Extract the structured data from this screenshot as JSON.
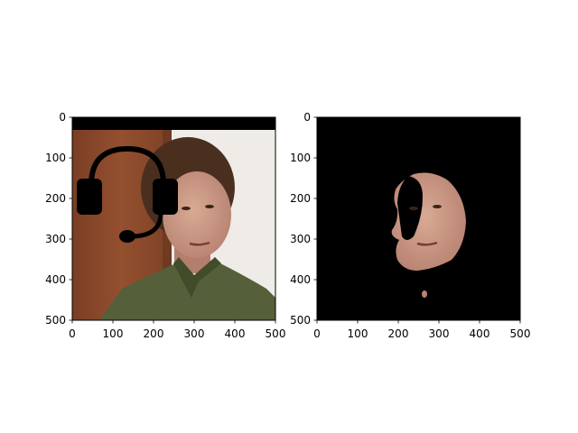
{
  "chart_data": [
    {
      "type": "image",
      "content": "photo of a woman in a green jacket with a black headset drawn over her head and a black bar at the top",
      "xlim": [
        0,
        500
      ],
      "ylim": [
        500,
        0
      ],
      "xticks": [
        0,
        100,
        200,
        300,
        400,
        500
      ],
      "yticks": [
        0,
        100,
        200,
        300,
        400,
        500
      ],
      "xticklabels": [
        "0",
        "100",
        "200",
        "300",
        "400",
        "500"
      ],
      "yticklabels": [
        "0",
        "100",
        "200",
        "300",
        "400",
        "500"
      ],
      "colors": {
        "background_wall": "#f0eeea",
        "wood_panel": "#8a4a2e",
        "jacket": "#4f5a32",
        "hair": "#4a2f1f",
        "skin": "#c99a86",
        "overlay": "#000000"
      }
    },
    {
      "type": "image",
      "content": "segmentation mask showing only the woman's face on a black background",
      "xlim": [
        0,
        500
      ],
      "ylim": [
        500,
        0
      ],
      "xticks": [
        0,
        100,
        200,
        300,
        400,
        500
      ],
      "yticks": [
        0,
        100,
        200,
        300,
        400,
        500
      ],
      "xticklabels": [
        "0",
        "100",
        "200",
        "300",
        "400",
        "500"
      ],
      "yticklabels": [
        "0",
        "100",
        "200",
        "300",
        "400",
        "500"
      ],
      "colors": {
        "background": "#000000",
        "skin": "#c99a86"
      }
    }
  ]
}
